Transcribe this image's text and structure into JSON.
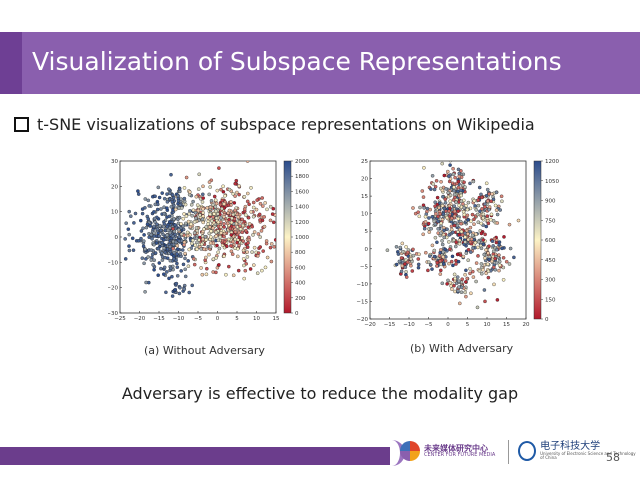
{
  "slide": {
    "title": "Visualization of Subspace Representations",
    "bullet": "t-SNE visualizations of subspace representations on Wikipedia",
    "caption_a": "(a) Without Adversary",
    "caption_b": "(b) With Adversary",
    "statement": "Adversary is effective to reduce the modality gap",
    "page_number": "58",
    "logo_center_cn": "未来媒体研究中心",
    "logo_center_en": "CENTER FOR FUTURE MEDIA",
    "logo_univ_cn": "电子科技大学",
    "logo_univ_en": "University of Electronic Science and Technology of China"
  },
  "colors": {
    "title_bar": "#8a5fae",
    "footer_bar": "#6b3d8c",
    "colormap_low": "#b2182b",
    "colormap_mid": "#fdf3c6",
    "colormap_high": "#2b4c8c"
  },
  "chart_data": [
    {
      "type": "scatter",
      "title": "",
      "xlabel": "",
      "ylabel": "",
      "xlim": [
        -25,
        15
      ],
      "ylim": [
        -30,
        30
      ],
      "x_ticks": [
        "−25",
        "−20",
        "−15",
        "−10",
        "−5",
        "0",
        "5",
        "10",
        "15"
      ],
      "y_ticks": [
        "30",
        "20",
        "10",
        "0",
        "−10",
        "−20",
        "−30"
      ],
      "colorbar": {
        "min": 0,
        "max": 2000,
        "ticks": [
          "2000",
          "1800",
          "1600",
          "1400",
          "1200",
          "1000",
          "800",
          "600",
          "400",
          "200",
          "0"
        ]
      },
      "clusters": [
        {
          "x": -13,
          "y": 0,
          "sx": 4,
          "sy": 8,
          "c": [
            1500,
            2000
          ],
          "n": 380
        },
        {
          "x": 3,
          "y": 4,
          "sx": 5.5,
          "sy": 8,
          "c": [
            0,
            1200
          ],
          "n": 420
        },
        {
          "x": -4,
          "y": 6,
          "sx": 3,
          "sy": 6,
          "c": [
            700,
            1500
          ],
          "n": 150
        },
        {
          "x": -11,
          "y": 16,
          "sx": 2,
          "sy": 1.5,
          "c": [
            1700,
            2000
          ],
          "n": 25
        },
        {
          "x": -10,
          "y": -21,
          "sx": 1.5,
          "sy": 1.2,
          "c": [
            1700,
            2000
          ],
          "n": 18
        }
      ]
    },
    {
      "type": "scatter",
      "title": "",
      "xlabel": "",
      "ylabel": "",
      "xlim": [
        -20,
        20
      ],
      "ylim": [
        -20,
        25
      ],
      "x_ticks": [
        "−20",
        "−15",
        "−10",
        "−5",
        "0",
        "5",
        "10",
        "15",
        "20"
      ],
      "y_ticks": [
        "25",
        "20",
        "15",
        "10",
        "5",
        "0",
        "−5",
        "−10",
        "−15",
        "−20"
      ],
      "colorbar": {
        "min": 0,
        "max": 1300,
        "ticks": [
          "1200",
          "1050",
          "900",
          "750",
          "600",
          "450",
          "300",
          "150",
          "0"
        ]
      },
      "clusters": [
        {
          "x": 2,
          "y": 18,
          "sx": 2.2,
          "sy": 2.5,
          "c": [
            0,
            1300
          ],
          "n": 90
        },
        {
          "x": 0,
          "y": 10,
          "sx": 4,
          "sy": 3,
          "c": [
            0,
            1300
          ],
          "n": 200
        },
        {
          "x": 10,
          "y": 12,
          "sx": 2.5,
          "sy": 2.5,
          "c": [
            0,
            1300
          ],
          "n": 70
        },
        {
          "x": 4,
          "y": 3,
          "sx": 3.5,
          "sy": 2.5,
          "c": [
            0,
            1300
          ],
          "n": 120
        },
        {
          "x": -11,
          "y": -3,
          "sx": 1.8,
          "sy": 2,
          "c": [
            0,
            1300
          ],
          "n": 60
        },
        {
          "x": -3,
          "y": -3,
          "sx": 1.5,
          "sy": 1.5,
          "c": [
            0,
            1300
          ],
          "n": 45
        },
        {
          "x": 11,
          "y": -2,
          "sx": 2,
          "sy": 3,
          "c": [
            0,
            1300
          ],
          "n": 80
        },
        {
          "x": 3,
          "y": -10,
          "sx": 1.8,
          "sy": 1.5,
          "c": [
            0,
            1300
          ],
          "n": 40
        },
        {
          "x": 6,
          "y": -3,
          "sx": 7,
          "sy": 6,
          "c": [
            0,
            1300
          ],
          "n": 60
        }
      ]
    }
  ]
}
